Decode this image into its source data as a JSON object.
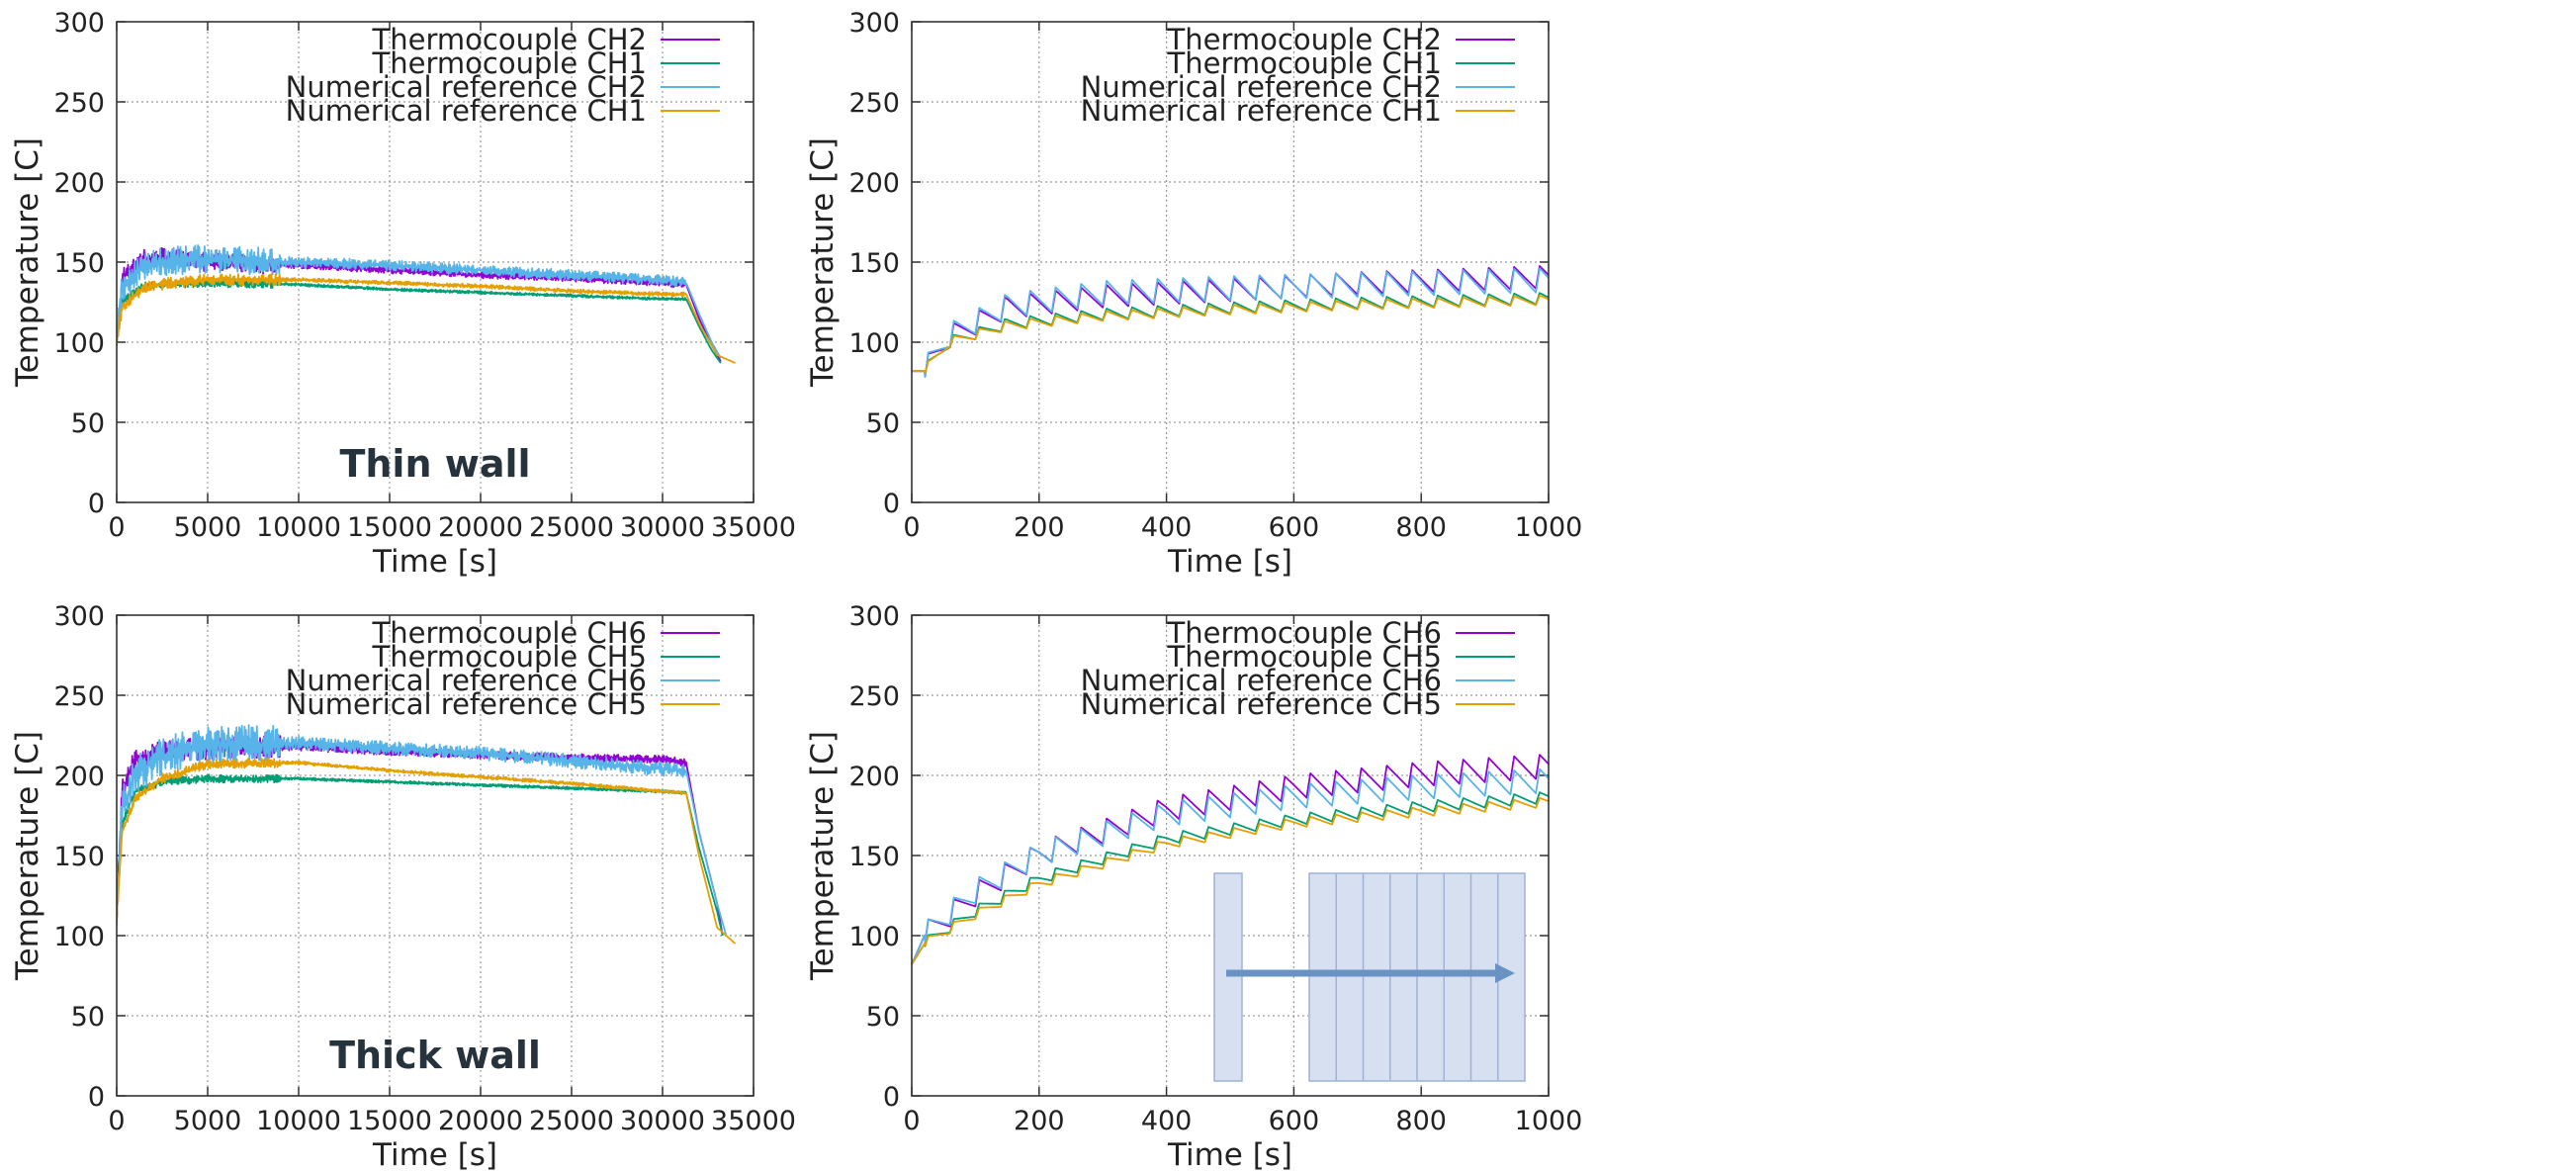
{
  "chart_data": [
    {
      "type": "line",
      "annotation": "Thin wall",
      "xlabel": "Time [s]",
      "ylabel": "Temperature [C]",
      "xlim": [
        0,
        35000
      ],
      "ylim": [
        0,
        300
      ],
      "xticks": [
        0,
        5000,
        10000,
        15000,
        20000,
        25000,
        30000,
        35000
      ],
      "yticks": [
        0,
        50,
        100,
        150,
        200,
        250,
        300
      ],
      "grid": true,
      "legend": "top-right",
      "series": [
        {
          "name": "Thermocouple CH2",
          "color": "#9400d3",
          "noise": 6,
          "x": [
            0,
            300,
            1500,
            2500,
            5000,
            10000,
            15000,
            20000,
            25000,
            30000,
            31300,
            32000,
            32700,
            33200
          ],
          "y": [
            100,
            140,
            152,
            153,
            150,
            148,
            145,
            142,
            140,
            137,
            136,
            115,
            98,
            88
          ]
        },
        {
          "name": "Thermocouple CH1",
          "color": "#009e73",
          "noise": 2.5,
          "x": [
            0,
            300,
            1500,
            2500,
            5000,
            10000,
            15000,
            20000,
            25000,
            30000,
            31300,
            32000,
            32700,
            33200
          ],
          "y": [
            100,
            125,
            135,
            136,
            137,
            136,
            133,
            131,
            129,
            127,
            127,
            110,
            95,
            87
          ]
        },
        {
          "name": "Numerical reference CH2",
          "color": "#56b4e9",
          "noise": 9,
          "x": [
            0,
            300,
            1500,
            3000,
            5000,
            10000,
            15000,
            20000,
            25000,
            30000,
            31300,
            32000,
            32700,
            33200
          ],
          "y": [
            100,
            135,
            148,
            151,
            152,
            150,
            148,
            145,
            142,
            139,
            137,
            118,
            100,
            90
          ]
        },
        {
          "name": "Numerical reference CH1",
          "color": "#e69f00",
          "noise": 3.5,
          "x": [
            0,
            300,
            1500,
            3000,
            5000,
            10000,
            15000,
            20000,
            25000,
            30000,
            31300,
            32000,
            33000,
            34000
          ],
          "y": [
            100,
            122,
            134,
            137,
            139,
            139,
            137,
            135,
            132,
            130,
            130,
            112,
            92,
            87
          ]
        }
      ]
    },
    {
      "type": "line",
      "xlabel": "Time [s]",
      "ylabel": "Temperature [C]",
      "xlim": [
        0,
        1000
      ],
      "ylim": [
        0,
        300
      ],
      "xticks": [
        0,
        200,
        400,
        600,
        800,
        1000
      ],
      "yticks": [
        0,
        50,
        100,
        150,
        200,
        250,
        300
      ],
      "grid": true,
      "legend": "top-right",
      "series": [
        {
          "name": "Thermocouple CH2",
          "color": "#9400d3",
          "base": [
            [
              0,
              82
            ],
            [
              20,
              82
            ],
            [
              60,
              103
            ],
            [
              150,
              121
            ],
            [
              300,
              128
            ],
            [
              500,
              132
            ],
            [
              700,
              136
            ],
            [
              1000,
              140
            ]
          ],
          "amplitude": 14
        },
        {
          "name": "Thermocouple CH1",
          "color": "#009e73",
          "base": [
            [
              0,
              82
            ],
            [
              20,
              82
            ],
            [
              60,
              100
            ],
            [
              150,
              111
            ],
            [
              300,
              117
            ],
            [
              500,
              121
            ],
            [
              700,
              124
            ],
            [
              1000,
              127
            ]
          ],
          "amplitude": 7
        },
        {
          "name": "Numerical reference CH2",
          "color": "#56b4e9",
          "base": [
            [
              0,
              82
            ],
            [
              20,
              82
            ],
            [
              60,
              104
            ],
            [
              150,
              122
            ],
            [
              300,
              130
            ],
            [
              500,
              133
            ],
            [
              700,
              135
            ],
            [
              1000,
              138
            ]
          ],
          "amplitude": 15
        },
        {
          "name": "Numerical reference CH1",
          "color": "#e69f00",
          "base": [
            [
              0,
              82
            ],
            [
              20,
              82
            ],
            [
              60,
              100
            ],
            [
              150,
              110
            ],
            [
              300,
              116
            ],
            [
              500,
              120
            ],
            [
              700,
              123
            ],
            [
              1000,
              126
            ]
          ],
          "amplitude": 6
        }
      ]
    },
    {
      "type": "line",
      "annotation": "Thick wall",
      "xlabel": "Time [s]",
      "ylabel": "Temperature [C]",
      "xlim": [
        0,
        35000
      ],
      "ylim": [
        0,
        300
      ],
      "xticks": [
        0,
        5000,
        10000,
        15000,
        20000,
        25000,
        30000,
        35000
      ],
      "yticks": [
        0,
        50,
        100,
        150,
        200,
        250,
        300
      ],
      "grid": true,
      "legend": "top-right",
      "series": [
        {
          "name": "Thermocouple CH6",
          "color": "#9400d3",
          "noise": 7,
          "x": [
            0,
            300,
            1000,
            2500,
            5000,
            10000,
            15000,
            20000,
            25000,
            30000,
            31300,
            32000,
            33000,
            33300
          ],
          "y": [
            110,
            190,
            210,
            215,
            217,
            218,
            215,
            213,
            211,
            210,
            208,
            165,
            120,
            100
          ]
        },
        {
          "name": "Thermocouple CH5",
          "color": "#009e73",
          "noise": 2.5,
          "x": [
            0,
            300,
            1000,
            2500,
            5000,
            10000,
            15000,
            20000,
            25000,
            30000,
            31300,
            32000,
            33000,
            33300
          ],
          "y": [
            110,
            170,
            190,
            196,
            198,
            198,
            196,
            194,
            192,
            190,
            189,
            155,
            115,
            100
          ]
        },
        {
          "name": "Numerical reference CH6",
          "color": "#56b4e9",
          "noise": 12,
          "x": [
            0,
            300,
            1000,
            2500,
            5000,
            10000,
            15000,
            20000,
            25000,
            30000,
            31300,
            32000,
            33000,
            33500
          ],
          "y": [
            110,
            180,
            200,
            212,
            219,
            220,
            217,
            214,
            209,
            204,
            203,
            165,
            120,
            100
          ]
        },
        {
          "name": "Numerical reference CH5",
          "color": "#e69f00",
          "noise": 3,
          "x": [
            0,
            300,
            1000,
            2500,
            5000,
            10000,
            15000,
            20000,
            25000,
            30000,
            31300,
            32000,
            33000,
            34000
          ],
          "y": [
            110,
            165,
            185,
            198,
            207,
            208,
            203,
            199,
            195,
            190,
            189,
            150,
            105,
            95
          ]
        }
      ]
    },
    {
      "type": "line",
      "xlabel": "Time [s]",
      "ylabel": "Temperature [C]",
      "xlim": [
        0,
        1000
      ],
      "ylim": [
        0,
        300
      ],
      "xticks": [
        0,
        200,
        400,
        600,
        800,
        1000
      ],
      "yticks": [
        0,
        50,
        100,
        150,
        200,
        250,
        300
      ],
      "grid": true,
      "legend": "top-right",
      "inset": "wall-section schematic with arrow",
      "series": [
        {
          "name": "Thermocouple CH6",
          "color": "#9400d3",
          "base": [
            [
              0,
              82
            ],
            [
              20,
              100
            ],
            [
              100,
              125
            ],
            [
              200,
              150
            ],
            [
              400,
              178
            ],
            [
              600,
              192
            ],
            [
              800,
              200
            ],
            [
              1000,
              205
            ]
          ],
          "amplitude": 15
        },
        {
          "name": "Thermocouple CH5",
          "color": "#009e73",
          "base": [
            [
              0,
              82
            ],
            [
              20,
              95
            ],
            [
              100,
              115
            ],
            [
              200,
              135
            ],
            [
              400,
              160
            ],
            [
              600,
              172
            ],
            [
              800,
              180
            ],
            [
              1000,
              186
            ]
          ],
          "amplitude": 7
        },
        {
          "name": "Numerical reference CH6",
          "color": "#56b4e9",
          "base": [
            [
              0,
              82
            ],
            [
              20,
              100
            ],
            [
              100,
              127
            ],
            [
              200,
              150
            ],
            [
              400,
              175
            ],
            [
              600,
              186
            ],
            [
              800,
              192
            ],
            [
              1000,
              196
            ]
          ],
          "amplitude": 15
        },
        {
          "name": "Numerical reference CH5",
          "color": "#e69f00",
          "base": [
            [
              0,
              82
            ],
            [
              20,
              95
            ],
            [
              100,
              113
            ],
            [
              200,
              132
            ],
            [
              400,
              157
            ],
            [
              600,
              170
            ],
            [
              800,
              177
            ],
            [
              1000,
              183
            ]
          ],
          "amplitude": 6
        }
      ]
    }
  ]
}
